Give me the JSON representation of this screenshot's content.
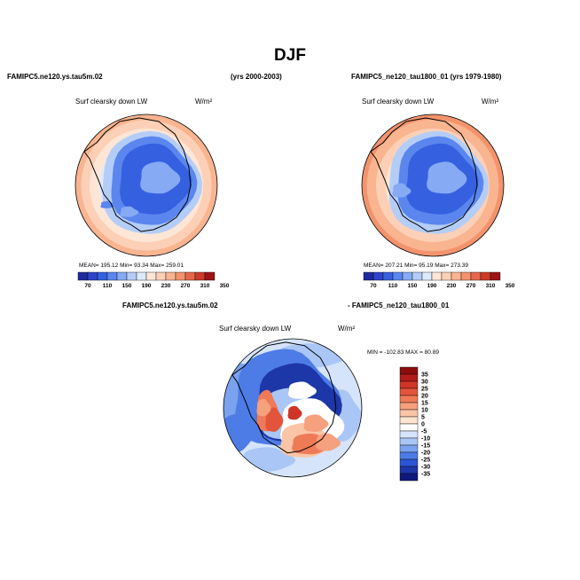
{
  "figure": {
    "title": "DJF",
    "header_left": "FAMIPC5.ne120.ys.tau5m.02",
    "header_left_years": "(yrs 2000-2003)",
    "header_right": "FAMIPC5_ne120_tau1800_01 (yrs 1979-1980)",
    "diff_label_left": "FAMIPC5.ne120.ys.tau5m.02",
    "diff_label_right": "- FAMIPC5_ne120_tau1800_01",
    "variable": "Surf clearsky down LW",
    "units": "W/m²"
  },
  "chart_data": [
    {
      "type": "heatmap",
      "projection": "south-polar-stereographic",
      "variable": "Surf clearsky down LW",
      "units": "W/m²",
      "case": "FAMIPC5.ne120.ys.tau5m.02",
      "years": "(yrs 2000-2003)",
      "stats_text": "MEAN= 195.12  Min=  93.34  Max= 259.01",
      "mean": 195.12,
      "min": 93.34,
      "max": 259.01,
      "colorbar_labels": [
        "70",
        "110",
        "150",
        "190",
        "230",
        "270",
        "310",
        "350"
      ],
      "colorbar_colors": [
        "#1f2a9f",
        "#2e44c8",
        "#3560e0",
        "#5a86ee",
        "#86aaf3",
        "#b4cdf7",
        "#ddeafc",
        "#fde6d6",
        "#fcd0b6",
        "#f9b490",
        "#f3936c",
        "#e5674a",
        "#cc3a2a",
        "#9d1414"
      ]
    },
    {
      "type": "heatmap",
      "projection": "south-polar-stereographic",
      "variable": "Surf clearsky down LW",
      "units": "W/m²",
      "case": "FAMIPC5_ne120_tau1800_01",
      "years": "(yrs 1979-1980)",
      "stats_text": "MEAN= 207.21  Min=  95.19  Max= 273.39",
      "mean": 207.21,
      "min": 95.19,
      "max": 273.39,
      "colorbar_labels": [
        "70",
        "110",
        "150",
        "190",
        "230",
        "270",
        "310",
        "350"
      ],
      "colorbar_colors": [
        "#1f2a9f",
        "#2e44c8",
        "#3560e0",
        "#5a86ee",
        "#86aaf3",
        "#b4cdf7",
        "#ddeafc",
        "#fde6d6",
        "#fcd0b6",
        "#f9b490",
        "#f3936c",
        "#e5674a",
        "#cc3a2a",
        "#9d1414"
      ]
    },
    {
      "type": "heatmap",
      "projection": "south-polar-stereographic",
      "variable": "Surf clearsky down LW",
      "units": "W/m²",
      "case": "FAMIPC5.ne120.ys.tau5m.02 - FAMIPC5_ne120_tau1800_01",
      "stats_text": "MIN = -102.83  MAX =  80.89",
      "min": -102.83,
      "max": 80.89,
      "colorbar_labels": [
        "35",
        "30",
        "25",
        "20",
        "15",
        "10",
        "5",
        "0",
        "-5",
        "-10",
        "-15",
        "-20",
        "-25",
        "-30",
        "-35"
      ],
      "colorbar_colors": [
        "#8b0e0e",
        "#b21c1c",
        "#cf3526",
        "#e2553b",
        "#ef7a57",
        "#f6a07d",
        "#fac5a6",
        "#fde3d0",
        "#ffffff",
        "#d5e4fb",
        "#a9c6f6",
        "#7aa2ef",
        "#4d7ce6",
        "#2b55d4",
        "#1d36a8",
        "#10197a"
      ]
    }
  ]
}
